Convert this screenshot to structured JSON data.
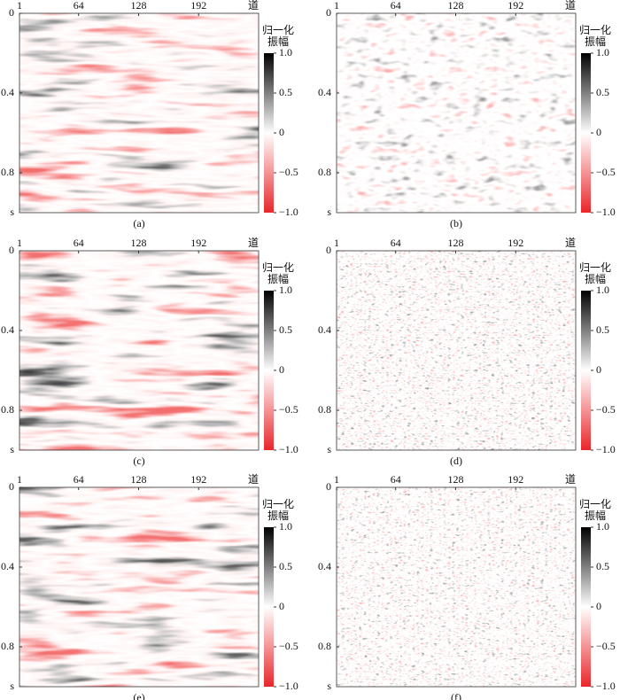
{
  "axes": {
    "x": {
      "lim": [
        1,
        256
      ],
      "ticks": [
        1,
        64,
        128,
        192
      ],
      "unit": "道"
    },
    "y": {
      "lim": [
        0,
        1
      ],
      "ticks": [
        0,
        0.4,
        0.8
      ],
      "unit": "s"
    }
  },
  "colorbar": {
    "title": [
      "归一化",
      "振幅"
    ],
    "lim": [
      -1,
      1
    ],
    "ticks": [
      {
        "value": 1,
        "label": "1.0"
      },
      {
        "value": 0.5,
        "label": "0.5"
      },
      0,
      {
        "value": -0.5,
        "label": "−0.5"
      },
      {
        "value": -1,
        "label": "−1.0"
      }
    ]
  },
  "panels": [
    {
      "caption": "(a)"
    },
    {
      "caption": "(b)"
    },
    {
      "caption": "(c)"
    },
    {
      "caption": "(d)"
    },
    {
      "caption": "(e)"
    },
    {
      "caption": "(f)"
    }
  ]
}
